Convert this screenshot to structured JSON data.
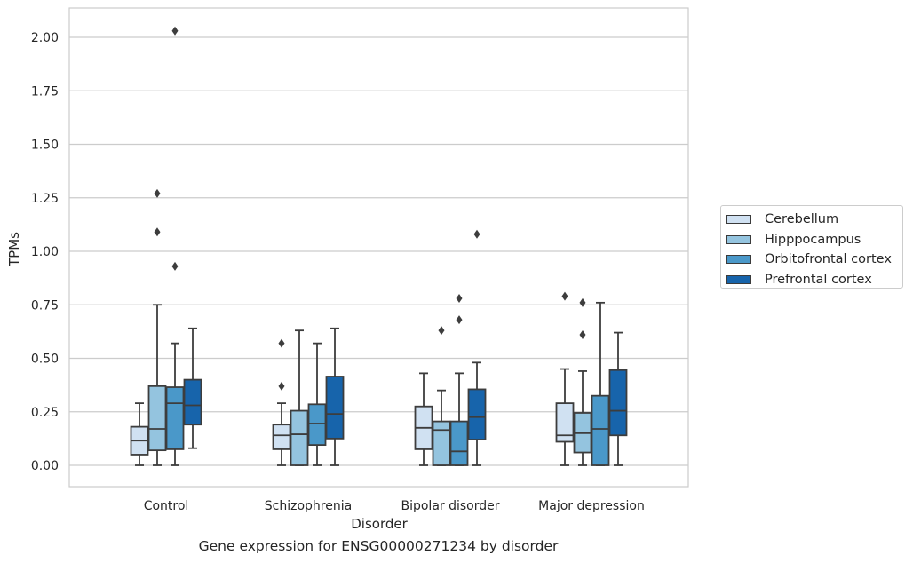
{
  "chart_data": {
    "type": "box",
    "caption": "Gene expression for ENSG00000271234 by disorder",
    "xlabel": "Disorder",
    "ylabel": "TPMs",
    "ylim": [
      -0.1,
      2.13
    ],
    "yticks": [
      "0.00",
      "0.25",
      "0.50",
      "0.75",
      "1.00",
      "1.25",
      "1.50",
      "1.75",
      "2.00"
    ],
    "ytick_values": [
      0,
      0.25,
      0.5,
      0.75,
      1.0,
      1.25,
      1.5,
      1.75,
      2.0
    ],
    "grid": true,
    "legend_position": "outside-right",
    "categories": [
      "Control",
      "Schizophrenia",
      "Bipolar disorder",
      "Major depression"
    ],
    "series": [
      {
        "name": "Cerebellum",
        "color": "#d0e1f2",
        "boxes": [
          {
            "whisker_low": 0.0,
            "q1": 0.05,
            "median": 0.115,
            "q3": 0.18,
            "whisker_high": 0.29,
            "outliers": []
          },
          {
            "whisker_low": 0.0,
            "q1": 0.075,
            "median": 0.14,
            "q3": 0.19,
            "whisker_high": 0.29,
            "outliers": [
              0.37,
              0.57
            ]
          },
          {
            "whisker_low": 0.0,
            "q1": 0.075,
            "median": 0.175,
            "q3": 0.275,
            "whisker_high": 0.43,
            "outliers": []
          },
          {
            "whisker_low": 0.0,
            "q1": 0.11,
            "median": 0.14,
            "q3": 0.29,
            "whisker_high": 0.45,
            "outliers": [
              0.79
            ]
          }
        ]
      },
      {
        "name": "Hipppocampus",
        "color": "#94c4df",
        "boxes": [
          {
            "whisker_low": 0.0,
            "q1": 0.07,
            "median": 0.17,
            "q3": 0.37,
            "whisker_high": 0.75,
            "outliers": [
              1.09,
              1.27
            ]
          },
          {
            "whisker_low": 0.0,
            "q1": 0.0,
            "median": 0.145,
            "q3": 0.255,
            "whisker_high": 0.63,
            "outliers": []
          },
          {
            "whisker_low": 0.0,
            "q1": 0.0,
            "median": 0.165,
            "q3": 0.205,
            "whisker_high": 0.35,
            "outliers": [
              0.63
            ]
          },
          {
            "whisker_low": 0.0,
            "q1": 0.06,
            "median": 0.15,
            "q3": 0.245,
            "whisker_high": 0.44,
            "outliers": [
              0.61,
              0.76
            ]
          }
        ]
      },
      {
        "name": "Orbitofrontal cortex",
        "color": "#4a98c9",
        "boxes": [
          {
            "whisker_low": 0.0,
            "q1": 0.075,
            "median": 0.29,
            "q3": 0.365,
            "whisker_high": 0.57,
            "outliers": [
              0.93,
              2.03
            ]
          },
          {
            "whisker_low": 0.0,
            "q1": 0.095,
            "median": 0.195,
            "q3": 0.285,
            "whisker_high": 0.57,
            "outliers": []
          },
          {
            "whisker_low": 0.0,
            "q1": 0.0,
            "median": 0.065,
            "q3": 0.205,
            "whisker_high": 0.43,
            "outliers": [
              0.68,
              0.78
            ]
          },
          {
            "whisker_low": 0.0,
            "q1": 0.0,
            "median": 0.17,
            "q3": 0.325,
            "whisker_high": 0.76,
            "outliers": []
          }
        ]
      },
      {
        "name": "Prefrontal cortex",
        "color": "#1764ab",
        "boxes": [
          {
            "whisker_low": 0.08,
            "q1": 0.19,
            "median": 0.28,
            "q3": 0.4,
            "whisker_high": 0.64,
            "outliers": []
          },
          {
            "whisker_low": 0.0,
            "q1": 0.125,
            "median": 0.24,
            "q3": 0.415,
            "whisker_high": 0.64,
            "outliers": []
          },
          {
            "whisker_low": 0.0,
            "q1": 0.12,
            "median": 0.225,
            "q3": 0.355,
            "whisker_high": 0.48,
            "outliers": [
              1.08
            ]
          },
          {
            "whisker_low": 0.0,
            "q1": 0.14,
            "median": 0.255,
            "q3": 0.445,
            "whisker_high": 0.62,
            "outliers": []
          }
        ]
      }
    ]
  }
}
